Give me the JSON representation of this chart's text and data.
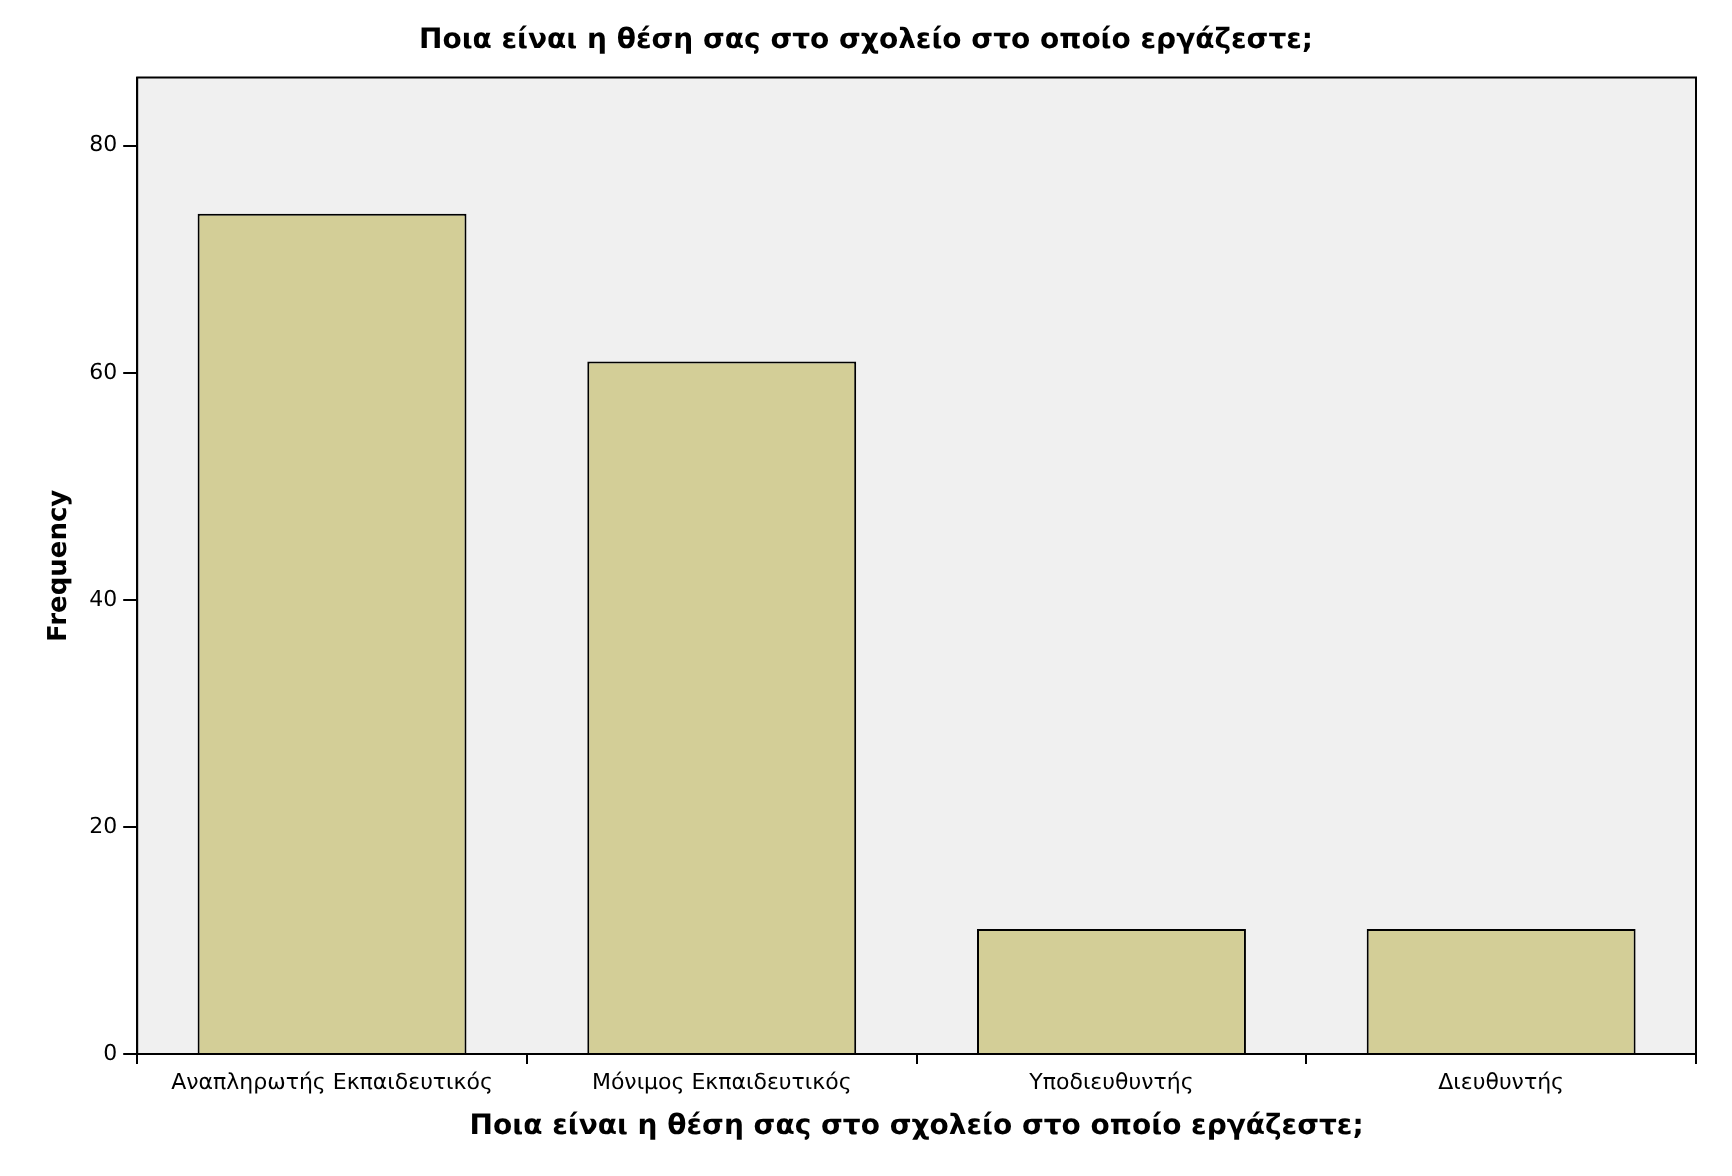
{
  "chart_data": {
    "type": "bar",
    "title": "Ποια είναι η θέση σας στο σχολείο στο οποίο εργάζεστε;",
    "xlabel": "Ποια είναι η θέση σας στο σχολείο στο οποίο εργάζεστε;",
    "ylabel": "Frequency",
    "categories": [
      "Αναπληρωτής Εκπαιδευτικός",
      "Μόνιμος Εκπαιδευτικός",
      "Υποδιευθυντής",
      "Διευθυντής"
    ],
    "values": [
      74,
      61,
      11,
      11
    ],
    "color": "#d3ce97",
    "ylim": [
      0,
      86
    ],
    "yticks": [
      0,
      20,
      40,
      60,
      80
    ],
    "grid": false,
    "legend": false
  }
}
